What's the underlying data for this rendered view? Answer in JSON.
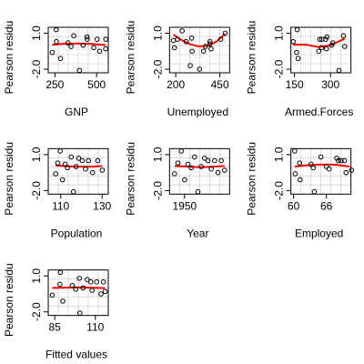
{
  "figure": {
    "style": {
      "background": "#ffffff",
      "panel_background": "#ffffff",
      "grid_color": "#d3d3d3",
      "smooth_color": "#ff0000",
      "point_color": "#000000"
    }
  },
  "chart_data": [
    {
      "type": "scatter",
      "title": "",
      "xlabel": "GNP",
      "ylabel": "Pearson residu",
      "xlim": [
        210,
        570
      ],
      "ylim": [
        -2.3,
        1.5
      ],
      "xticks": [
        250,
        500
      ],
      "xtick_labels": [
        "250",
        "500"
      ],
      "yticks": [
        -2.0,
        1.0
      ],
      "ytick_labels": [
        "-2.0",
        "1.0"
      ],
      "grid": true,
      "points": {
        "x": [
          234,
          259,
          258,
          284,
          328,
          347,
          363,
          397,
          419,
          442,
          444,
          483,
          503,
          518,
          555,
          554
        ],
        "y": [
          -0.6,
          0.3,
          1.3,
          -1.1,
          0.2,
          -0.1,
          0.8,
          -2.1,
          0.0,
          0.7,
          0.5,
          -0.2,
          0.5,
          -0.5,
          0.5,
          -0.3
        ]
      },
      "smooth": {
        "x": [
          234,
          300,
          380,
          460,
          555
        ],
        "y": [
          0.05,
          0.12,
          0.15,
          0.12,
          0.02
        ]
      }
    },
    {
      "type": "scatter",
      "title": "",
      "xlabel": "Unemployed",
      "ylabel": "Pearson residu",
      "xlim": [
        165,
        505
      ],
      "ylim": [
        -2.3,
        1.5
      ],
      "xticks": [
        200,
        450
      ],
      "xtick_labels": [
        "200",
        "450"
      ],
      "yticks": [
        -2.0,
        1.0
      ],
      "ytick_labels": [
        "-2.0",
        "1.0"
      ],
      "grid": true,
      "points": {
        "x": [
          236,
          259,
          368,
          335,
          210,
          193,
          187,
          357,
          290,
          282,
          293,
          393,
          394,
          480,
          400,
          455
        ],
        "y": [
          1.2,
          0.3,
          -0.1,
          -2.0,
          0.5,
          -0.2,
          0.4,
          -0.5,
          0.6,
          -1.7,
          -0.5,
          0.1,
          0.3,
          1.0,
          -0.3,
          0.5
        ]
      },
      "smooth": {
        "x": [
          187,
          230,
          280,
          330,
          380,
          430,
          480
        ],
        "y": [
          0.9,
          0.45,
          0.1,
          -0.1,
          -0.05,
          0.3,
          0.95
        ]
      }
    },
    {
      "type": "scatter",
      "title": "",
      "xlabel": "Armed.Forces",
      "ylabel": "Pearson residu",
      "xlim": [
        135,
        385
      ],
      "ylim": [
        -2.3,
        1.5
      ],
      "xticks": [
        150,
        300
      ],
      "xtick_labels": [
        "150",
        "300"
      ],
      "yticks": [
        -2.0,
        1.0
      ],
      "ytick_labels": [
        "-2.0",
        "1.0"
      ],
      "grid": true,
      "points": {
        "x": [
          159,
          145,
          161,
          165,
          310,
          359,
          354,
          335,
          304,
          285,
          280,
          263,
          255,
          251,
          264,
          283
        ],
        "y": [
          -0.6,
          0.3,
          1.3,
          -1.1,
          0.2,
          -0.1,
          0.8,
          -2.1,
          0.0,
          0.7,
          0.5,
          -0.2,
          0.5,
          -0.5,
          0.5,
          -0.3
        ]
      },
      "smooth": {
        "x": [
          145,
          200,
          250,
          300,
          359
        ],
        "y": [
          0.05,
          0.05,
          -0.15,
          0.0,
          0.55
        ]
      }
    },
    {
      "type": "scatter",
      "title": "",
      "xlabel": "Population",
      "ylabel": "Pearson residu",
      "xlim": [
        104,
        133
      ],
      "ylim": [
        -2.3,
        1.5
      ],
      "xticks": [
        110,
        130
      ],
      "xtick_labels": [
        "110",
        "130"
      ],
      "yticks": [
        -2.0,
        1.0
      ],
      "ytick_labels": [
        "-2.0",
        "1.0"
      ],
      "grid": true,
      "points": {
        "x": [
          107.6,
          108.6,
          109.8,
          110.9,
          112.1,
          113.3,
          115.1,
          116.2,
          117.4,
          118.7,
          120.4,
          122.0,
          123.4,
          125.4,
          127.9,
          130.1
        ],
        "y": [
          -0.6,
          0.3,
          1.3,
          -1.1,
          0.2,
          -0.1,
          0.8,
          -2.1,
          0.0,
          0.7,
          0.5,
          -0.2,
          0.5,
          -0.5,
          0.5,
          -0.3
        ]
      },
      "smooth": {
        "x": [
          107.6,
          112,
          117,
          122,
          126,
          130.1
        ],
        "y": [
          0.1,
          0.05,
          0.0,
          0.0,
          0.0,
          0.05
        ]
      }
    },
    {
      "type": "scatter",
      "title": "",
      "xlabel": "Year",
      "ylabel": "Pearson residu",
      "xlim": [
        1945.5,
        1963.5
      ],
      "ylim": [
        -2.3,
        1.5
      ],
      "xticks": [
        1950
      ],
      "xtick_labels": [
        "1950"
      ],
      "yticks": [
        -2.0,
        1.0
      ],
      "ytick_labels": [
        "-2.0",
        "1.0"
      ],
      "grid": true,
      "points": {
        "x": [
          1947,
          1948,
          1949,
          1950,
          1951,
          1952,
          1953,
          1954,
          1955,
          1956,
          1957,
          1958,
          1959,
          1960,
          1961,
          1962
        ],
        "y": [
          -0.6,
          0.3,
          1.3,
          -1.1,
          0.2,
          -0.1,
          0.8,
          -2.1,
          0.0,
          0.7,
          0.5,
          -0.2,
          0.5,
          -0.5,
          0.5,
          -0.3
        ]
      },
      "smooth": {
        "x": [
          1947,
          1951,
          1955,
          1959,
          1962
        ],
        "y": [
          0.05,
          0.0,
          -0.05,
          0.0,
          0.05
        ]
      }
    },
    {
      "type": "scatter",
      "title": "",
      "xlabel": "Employed",
      "ylabel": "Pearson residu",
      "xlim": [
        59.5,
        70.5
      ],
      "ylim": [
        -2.3,
        1.5
      ],
      "xticks": [
        60,
        66
      ],
      "xtick_labels": [
        "60",
        "66"
      ],
      "yticks": [
        -2.0,
        1.0
      ],
      "ytick_labels": [
        "-2.0",
        "1.0"
      ],
      "grid": true,
      "points": {
        "x": [
          60.3,
          61.1,
          60.2,
          61.2,
          63.2,
          63.6,
          65.0,
          63.8,
          66.0,
          67.9,
          68.2,
          66.5,
          68.7,
          69.6,
          69.3,
          70.6
        ],
        "y": [
          -0.6,
          0.3,
          1.3,
          -1.1,
          0.2,
          -0.1,
          0.8,
          -2.1,
          0.0,
          0.7,
          0.5,
          -0.2,
          0.5,
          -0.5,
          0.5,
          -0.3
        ]
      },
      "smooth": {
        "x": [
          60.2,
          62,
          64,
          66,
          68,
          70.3
        ],
        "y": [
          0.0,
          0.1,
          0.15,
          0.18,
          0.15,
          0.0
        ]
      }
    },
    {
      "type": "scatter",
      "title": "",
      "xlabel": "Fitted values",
      "ylabel": "Pearson residu",
      "xlim": [
        81,
        118
      ],
      "ylim": [
        -2.3,
        1.5
      ],
      "xticks": [
        85,
        110
      ],
      "xtick_labels": [
        "85",
        "110"
      ],
      "yticks": [
        -2.0,
        1.0
      ],
      "ytick_labels": [
        "-2.0",
        "1.0"
      ],
      "grid": true,
      "points": {
        "x": [
          83.5,
          88.2,
          88.5,
          90.0,
          95.8,
          97.9,
          100.2,
          100.5,
          102.4,
          105.0,
          107.2,
          108.0,
          110.8,
          113.5,
          115.0,
          116.1
        ],
        "y": [
          -0.6,
          0.3,
          1.3,
          -1.1,
          0.2,
          -0.1,
          0.8,
          -2.1,
          0.0,
          0.7,
          0.5,
          -0.2,
          0.5,
          -0.5,
          0.5,
          -0.3
        ]
      },
      "smooth": {
        "x": [
          83.5,
          92,
          100,
          108,
          116
        ],
        "y": [
          0.0,
          0.02,
          0.05,
          0.02,
          -0.02
        ]
      }
    }
  ]
}
